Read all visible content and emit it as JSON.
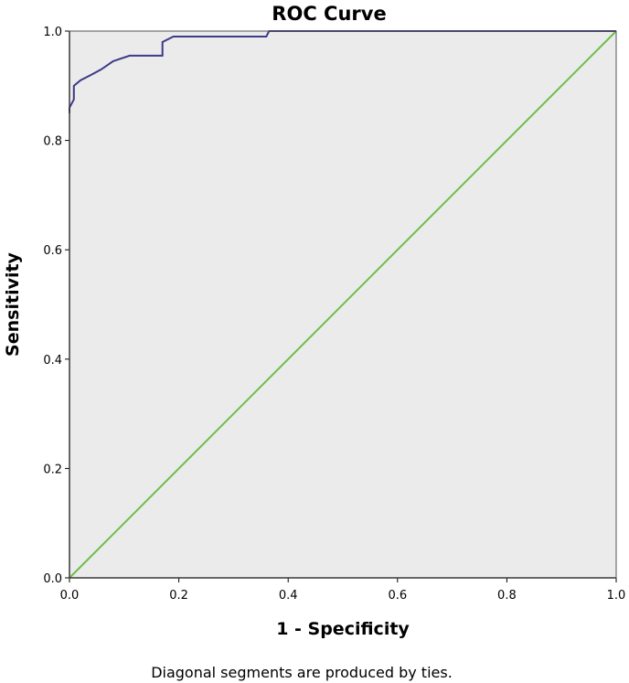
{
  "chart_data": {
    "type": "line",
    "title": "ROC Curve",
    "xlabel": "1 - Specificity",
    "ylabel": "Sensitivity",
    "xlim": [
      0.0,
      1.0
    ],
    "ylim": [
      0.0,
      1.0
    ],
    "x_ticks": [
      "0.0",
      "0.2",
      "0.4",
      "0.6",
      "0.8",
      "1.0"
    ],
    "y_ticks": [
      "0.0",
      "0.2",
      "0.4",
      "0.6",
      "0.8",
      "1.0"
    ],
    "grid": false,
    "legend": "none",
    "footnote": "Diagonal segments are produced by ties.",
    "colors": {
      "background": "#ebebeb",
      "roc_line": "#3d3a87",
      "reference_line": "#6abf4b"
    },
    "series": [
      {
        "x": [
          0.0,
          0.0,
          0.008,
          0.008,
          0.02,
          0.04,
          0.058,
          0.08,
          0.11,
          0.17,
          0.17,
          0.19,
          0.36,
          0.365,
          1.0
        ],
        "y": [
          0.85,
          0.86,
          0.875,
          0.9,
          0.91,
          0.92,
          0.93,
          0.945,
          0.955,
          0.955,
          0.98,
          0.99,
          0.99,
          1.0,
          1.0
        ]
      },
      {
        "x": [
          0.0,
          1.0
        ],
        "y": [
          0.0,
          1.0
        ]
      }
    ]
  }
}
